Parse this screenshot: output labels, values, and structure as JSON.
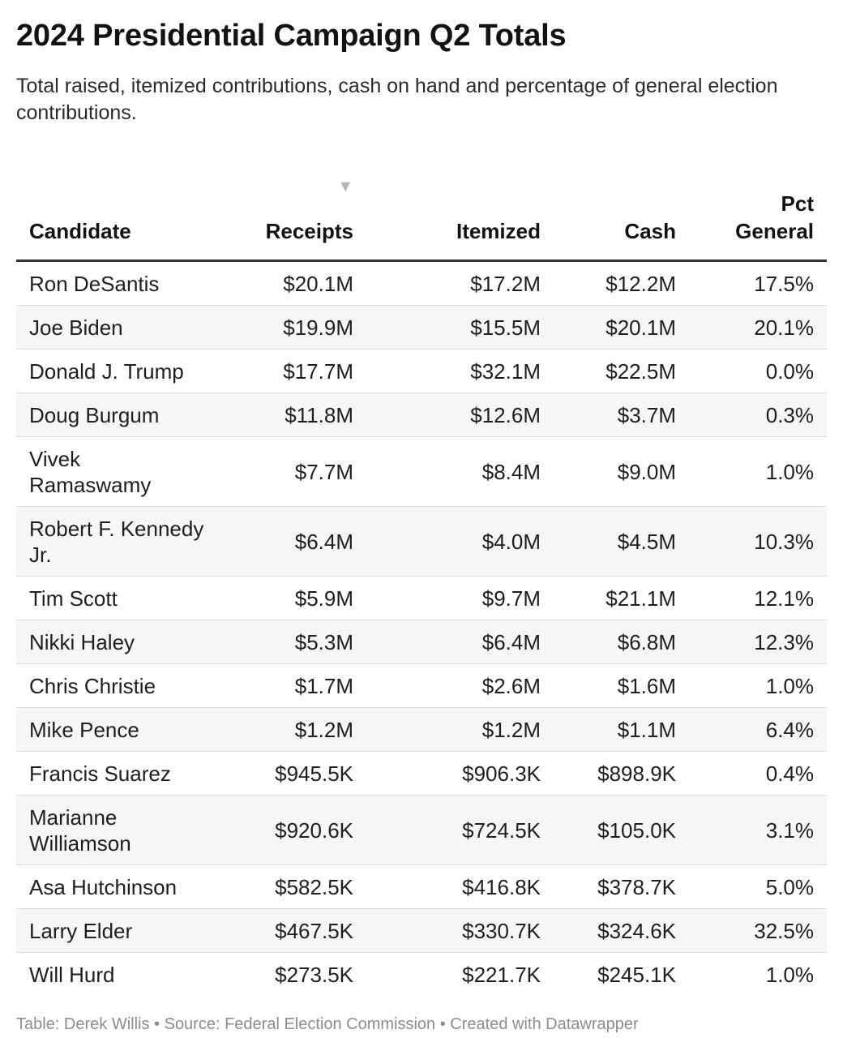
{
  "title": "2024 Presidential Campaign Q2 Totals",
  "subtitle": "Total raised, itemized contributions, cash on hand and percentage of general election contributions.",
  "sort_indicator": "▼",
  "footer": "Table: Derek Willis • Source: Federal Election Commission • Created with Datawrapper",
  "chart_data": {
    "type": "table",
    "title": "2024 Presidential Campaign Q2 Totals",
    "subtitle": "Total raised, itemized contributions, cash on hand and percentage of general election contributions.",
    "sorted_by": "Receipts",
    "sort_order": "descending",
    "columns": [
      "Candidate",
      "Receipts",
      "Itemized",
      "Cash",
      "Pct General"
    ],
    "rows": [
      {
        "candidate": "Ron DeSantis",
        "receipts": "$20.1M",
        "itemized": "$17.2M",
        "cash": "$12.2M",
        "pct_general": "17.5%"
      },
      {
        "candidate": "Joe Biden",
        "receipts": "$19.9M",
        "itemized": "$15.5M",
        "cash": "$20.1M",
        "pct_general": "20.1%"
      },
      {
        "candidate": "Donald J. Trump",
        "receipts": "$17.7M",
        "itemized": "$32.1M",
        "cash": "$22.5M",
        "pct_general": "0.0%"
      },
      {
        "candidate": "Doug Burgum",
        "receipts": "$11.8M",
        "itemized": "$12.6M",
        "cash": "$3.7M",
        "pct_general": "0.3%"
      },
      {
        "candidate": "Vivek Ramaswamy",
        "receipts": "$7.7M",
        "itemized": "$8.4M",
        "cash": "$9.0M",
        "pct_general": "1.0%"
      },
      {
        "candidate": "Robert F. Kennedy Jr.",
        "receipts": "$6.4M",
        "itemized": "$4.0M",
        "cash": "$4.5M",
        "pct_general": "10.3%"
      },
      {
        "candidate": "Tim Scott",
        "receipts": "$5.9M",
        "itemized": "$9.7M",
        "cash": "$21.1M",
        "pct_general": "12.1%"
      },
      {
        "candidate": "Nikki Haley",
        "receipts": "$5.3M",
        "itemized": "$6.4M",
        "cash": "$6.8M",
        "pct_general": "12.3%"
      },
      {
        "candidate": "Chris Christie",
        "receipts": "$1.7M",
        "itemized": "$2.6M",
        "cash": "$1.6M",
        "pct_general": "1.0%"
      },
      {
        "candidate": "Mike Pence",
        "receipts": "$1.2M",
        "itemized": "$1.2M",
        "cash": "$1.1M",
        "pct_general": "6.4%"
      },
      {
        "candidate": "Francis Suarez",
        "receipts": "$945.5K",
        "itemized": "$906.3K",
        "cash": "$898.9K",
        "pct_general": "0.4%"
      },
      {
        "candidate": "Marianne Williamson",
        "receipts": "$920.6K",
        "itemized": "$724.5K",
        "cash": "$105.0K",
        "pct_general": "3.1%"
      },
      {
        "candidate": "Asa Hutchinson",
        "receipts": "$582.5K",
        "itemized": "$416.8K",
        "cash": "$378.7K",
        "pct_general": "5.0%"
      },
      {
        "candidate": "Larry Elder",
        "receipts": "$467.5K",
        "itemized": "$330.7K",
        "cash": "$324.6K",
        "pct_general": "32.5%"
      },
      {
        "candidate": "Will Hurd",
        "receipts": "$273.5K",
        "itemized": "$221.7K",
        "cash": "$245.1K",
        "pct_general": "1.0%"
      }
    ]
  }
}
